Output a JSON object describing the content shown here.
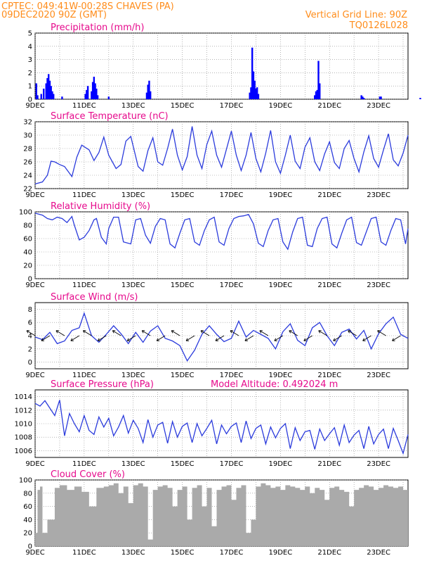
{
  "header": {
    "line1_left": "CPTEC:   049:41W-00:28S   CHAVES (PA)",
    "line2_left": "09DEC2020 90Z (GMT)",
    "line1_right": "Vertical Grid Line: 90Z",
    "line2_right": "TQ0126L028"
  },
  "x_labels": [
    "9DEC",
    "11DEC",
    "13DEC",
    "15DEC",
    "17DEC",
    "19DEC",
    "21DEC",
    "23DEC"
  ],
  "chart_data": [
    {
      "id": "precip",
      "type": "bar",
      "title": "Precipitation (mm/h)",
      "ylim": [
        0,
        5
      ],
      "yticks": [
        0,
        1,
        2,
        3,
        4,
        5
      ],
      "color": "#0000ff",
      "x_days": [
        0.05,
        0.1,
        0.25,
        0.35,
        0.45,
        0.5,
        0.55,
        0.6,
        0.65,
        0.7,
        0.75,
        1.1,
        2.05,
        2.1,
        2.15,
        2.3,
        2.35,
        2.4,
        2.45,
        2.5,
        2.55,
        3.0,
        4.55,
        4.6,
        4.65,
        4.7,
        8.75,
        8.8,
        8.85,
        8.9,
        8.95,
        9.0,
        9.05,
        9.1,
        11.4,
        11.45,
        11.5,
        11.55,
        11.6,
        13.3,
        13.35,
        13.4,
        14.05,
        14.1,
        15.7,
        16.3,
        17.05,
        17.1
      ],
      "values": [
        1.2,
        0.3,
        0.4,
        0.8,
        1.2,
        1.6,
        1.9,
        1.4,
        1.0,
        0.6,
        0.4,
        0.2,
        0.4,
        0.7,
        1.0,
        0.6,
        1.3,
        1.7,
        1.2,
        0.8,
        0.3,
        0.2,
        0.5,
        1.1,
        1.4,
        0.6,
        0.5,
        0.9,
        3.9,
        2.1,
        1.4,
        0.8,
        0.9,
        0.4,
        0.3,
        0.6,
        0.7,
        2.9,
        1.2,
        0.3,
        0.2,
        0.1,
        0.2,
        0.2,
        0.1,
        0.1,
        0.3,
        0.1
      ]
    },
    {
      "id": "temp",
      "type": "line",
      "title": "Surface Temperature (nC)",
      "ylim": [
        22,
        32
      ],
      "yticks": [
        22,
        24,
        26,
        28,
        30,
        32
      ],
      "color": "#2b3bdc",
      "x": [
        0,
        0.3,
        0.5,
        0.65,
        0.8,
        1.0,
        1.2,
        1.5,
        1.7,
        1.9,
        2.2,
        2.4,
        2.6,
        2.8,
        3.0,
        3.3,
        3.5,
        3.7,
        3.9,
        4.2,
        4.4,
        4.6,
        4.8,
        5.0,
        5.2,
        5.4,
        5.6,
        5.8,
        6.0,
        6.2,
        6.4,
        6.6,
        6.8,
        7.0,
        7.2,
        7.4,
        7.6,
        7.8,
        8.0,
        8.2,
        8.4,
        8.6,
        8.8,
        9.0,
        9.2,
        9.4,
        9.6,
        9.8,
        10.0,
        10.2,
        10.4,
        10.6,
        10.8,
        11.0,
        11.2,
        11.4,
        11.6,
        11.8,
        12.0,
        12.2,
        12.4,
        12.6,
        12.8,
        13.0,
        13.2,
        13.4,
        13.6,
        13.8,
        14.0,
        14.2,
        14.4,
        14.6,
        14.8,
        15.0,
        15.2
      ],
      "values": [
        22.7,
        23.0,
        24.0,
        26.1,
        26.0,
        25.6,
        25.3,
        23.8,
        26.7,
        28.5,
        27.8,
        26.2,
        27.4,
        29.7,
        27.0,
        25.0,
        25.6,
        29.1,
        29.8,
        25.3,
        24.6,
        27.7,
        29.6,
        26.0,
        25.5,
        28.0,
        30.9,
        27.0,
        24.8,
        26.8,
        31.3,
        27.0,
        25.0,
        28.6,
        30.6,
        27.0,
        25.2,
        27.9,
        30.6,
        27.0,
        24.7,
        27.0,
        30.4,
        26.5,
        24.5,
        27.3,
        30.7,
        26.0,
        24.3,
        27.0,
        30.0,
        26.1,
        25.0,
        28.2,
        29.6,
        26.0,
        24.7,
        27.2,
        29.0,
        25.9,
        25.0,
        28.0,
        29.2,
        26.5,
        24.5,
        27.5,
        29.9,
        26.5,
        25.2,
        27.8,
        30.2,
        26.3,
        25.4,
        27.3,
        30.0
      ]
    },
    {
      "id": "rh",
      "type": "line",
      "title": "Relative Humidity (%)",
      "ylim": [
        0,
        100
      ],
      "yticks": [
        0,
        20,
        40,
        60,
        80,
        100
      ],
      "color": "#2b3bdc",
      "x": [
        0,
        0.3,
        0.5,
        0.7,
        0.9,
        1.1,
        1.3,
        1.5,
        1.6,
        1.8,
        2.0,
        2.2,
        2.4,
        2.5,
        2.7,
        2.9,
        3.0,
        3.2,
        3.4,
        3.6,
        3.9,
        4.1,
        4.3,
        4.5,
        4.7,
        4.9,
        5.1,
        5.3,
        5.5,
        5.7,
        5.9,
        6.1,
        6.3,
        6.5,
        6.7,
        6.9,
        7.1,
        7.3,
        7.5,
        7.7,
        7.9,
        8.1,
        8.3,
        8.5,
        8.7,
        8.9,
        9.1,
        9.3,
        9.5,
        9.7,
        9.9,
        10.1,
        10.3,
        10.5,
        10.7,
        10.9,
        11.1,
        11.3,
        11.5,
        11.7,
        11.9,
        12.1,
        12.3,
        12.5,
        12.7,
        12.9,
        13.1,
        13.3,
        13.5,
        13.7,
        13.9,
        14.1,
        14.3,
        14.5,
        14.7,
        14.9,
        15.1,
        15.2
      ],
      "values": [
        98,
        95,
        90,
        88,
        92,
        90,
        84,
        93,
        80,
        58,
        62,
        72,
        88,
        90,
        62,
        52,
        75,
        92,
        92,
        55,
        52,
        88,
        90,
        65,
        53,
        78,
        90,
        88,
        52,
        46,
        68,
        88,
        90,
        55,
        50,
        72,
        88,
        92,
        55,
        50,
        75,
        90,
        93,
        94,
        96,
        82,
        53,
        48,
        72,
        88,
        90,
        55,
        44,
        70,
        90,
        92,
        50,
        48,
        75,
        90,
        92,
        52,
        46,
        68,
        88,
        92,
        54,
        50,
        70,
        90,
        92,
        55,
        50,
        72,
        90,
        88,
        52,
        75
      ]
    },
    {
      "id": "wind",
      "type": "line",
      "title": "Surface Wind (m/s)",
      "ylim": [
        -1,
        9
      ],
      "yticks": [
        0,
        2,
        4,
        6,
        8
      ],
      "color": "#2b3bdc",
      "x": [
        0,
        0.3,
        0.6,
        0.9,
        1.2,
        1.5,
        1.8,
        2.0,
        2.3,
        2.6,
        2.9,
        3.2,
        3.5,
        3.8,
        4.1,
        4.4,
        4.7,
        5.0,
        5.3,
        5.6,
        5.9,
        6.2,
        6.5,
        6.8,
        7.1,
        7.4,
        7.7,
        8.0,
        8.3,
        8.6,
        8.9,
        9.2,
        9.5,
        9.8,
        10.1,
        10.4,
        10.7,
        11.0,
        11.3,
        11.6,
        11.9,
        12.2,
        12.5,
        12.8,
        13.1,
        13.4,
        13.7,
        14.0,
        14.3,
        14.6,
        14.9,
        15.2
      ],
      "values": [
        3.8,
        3.4,
        4.5,
        2.8,
        3.2,
        4.8,
        5.2,
        7.4,
        4.0,
        3.0,
        4.2,
        5.5,
        4.3,
        2.8,
        4.5,
        3.0,
        4.7,
        5.5,
        3.6,
        3.2,
        2.5,
        0.2,
        1.8,
        4.2,
        5.5,
        4.2,
        3.1,
        3.6,
        6.2,
        3.8,
        4.8,
        4.2,
        3.6,
        2.0,
        4.6,
        5.8,
        3.3,
        2.5,
        5.2,
        6.0,
        4.0,
        2.5,
        4.5,
        5.0,
        3.5,
        4.8,
        2.0,
        4.3,
        5.8,
        6.8,
        4.2,
        3.6
      ]
    },
    {
      "id": "pres",
      "type": "line",
      "title": "Surface Pressure (hPa)",
      "subtitle": "Model Altitude: 0.492024 m",
      "ylim": [
        1005,
        1015
      ],
      "yticks": [
        1006,
        1008,
        1010,
        1012,
        1014
      ],
      "color": "#2b3bdc",
      "x": [
        0,
        0.2,
        0.4,
        0.6,
        0.8,
        1.0,
        1.2,
        1.4,
        1.6,
        1.8,
        2.0,
        2.2,
        2.4,
        2.6,
        2.8,
        3.0,
        3.2,
        3.4,
        3.6,
        3.8,
        4.0,
        4.2,
        4.4,
        4.6,
        4.8,
        5.0,
        5.2,
        5.4,
        5.6,
        5.8,
        6.0,
        6.2,
        6.4,
        6.6,
        6.8,
        7.0,
        7.2,
        7.4,
        7.6,
        7.8,
        8.0,
        8.2,
        8.4,
        8.6,
        8.8,
        9.0,
        9.2,
        9.4,
        9.6,
        9.8,
        10.0,
        10.2,
        10.4,
        10.6,
        10.8,
        11.0,
        11.2,
        11.4,
        11.6,
        11.8,
        12.0,
        12.2,
        12.4,
        12.6,
        12.8,
        13.0,
        13.2,
        13.4,
        13.6,
        13.8,
        14.0,
        14.2,
        14.4,
        14.6,
        14.8,
        15.0,
        15.2
      ],
      "values": [
        1013.0,
        1012.6,
        1013.4,
        1012.3,
        1011.2,
        1013.5,
        1008.2,
        1011.5,
        1010.0,
        1008.8,
        1011.2,
        1009.0,
        1008.4,
        1011.0,
        1009.5,
        1010.8,
        1008.2,
        1009.5,
        1011.2,
        1008.6,
        1010.5,
        1009.3,
        1007.2,
        1010.6,
        1008.0,
        1009.8,
        1010.2,
        1007.1,
        1010.3,
        1008.0,
        1009.6,
        1010.1,
        1007.2,
        1010.0,
        1008.2,
        1009.3,
        1010.5,
        1007.0,
        1009.8,
        1008.5,
        1009.6,
        1010.1,
        1007.2,
        1010.4,
        1007.8,
        1009.3,
        1009.8,
        1007.0,
        1009.5,
        1007.9,
        1009.3,
        1010.0,
        1006.3,
        1009.4,
        1007.5,
        1008.8,
        1009.0,
        1006.2,
        1009.2,
        1007.5,
        1008.5,
        1009.4,
        1006.8,
        1009.8,
        1007.2,
        1008.3,
        1009.0,
        1006.3,
        1009.6,
        1007.0,
        1008.4,
        1009.2,
        1006.3,
        1009.3,
        1007.5,
        1005.6,
        1008.4
      ]
    },
    {
      "id": "cloud",
      "type": "bar",
      "title": "Cloud Cover (%)",
      "ylim": [
        0,
        100
      ],
      "yticks": [
        0,
        20,
        40,
        60,
        80,
        100
      ],
      "color": "#aaaaaa",
      "x": [
        0,
        0.1,
        0.2,
        0.3,
        0.5,
        0.8,
        1.0,
        1.3,
        1.6,
        1.9,
        2.2,
        2.5,
        2.8,
        3.0,
        3.2,
        3.4,
        3.6,
        3.8,
        4.0,
        4.2,
        4.4,
        4.6,
        4.8,
        5.0,
        5.2,
        5.4,
        5.6,
        5.8,
        6.0,
        6.2,
        6.4,
        6.6,
        6.8,
        7.0,
        7.2,
        7.4,
        7.6,
        7.8,
        8.0,
        8.2,
        8.4,
        8.6,
        8.8,
        9.0,
        9.2,
        9.4,
        9.6,
        9.8,
        10.0,
        10.2,
        10.4,
        10.6,
        10.8,
        11.0,
        11.2,
        11.4,
        11.6,
        11.8,
        12.0,
        12.2,
        12.4,
        12.6,
        12.8,
        13.0,
        13.2,
        13.4,
        13.6,
        13.8,
        14.0,
        14.2,
        14.4,
        14.6,
        14.8,
        15.0,
        15.2
      ],
      "values": [
        20,
        85,
        90,
        20,
        40,
        88,
        92,
        85,
        90,
        82,
        60,
        88,
        90,
        92,
        95,
        80,
        90,
        65,
        92,
        95,
        90,
        10,
        85,
        90,
        92,
        88,
        60,
        85,
        90,
        40,
        88,
        92,
        60,
        88,
        30,
        85,
        90,
        92,
        70,
        88,
        92,
        20,
        40,
        90,
        95,
        92,
        88,
        90,
        85,
        92,
        90,
        88,
        85,
        90,
        80,
        88,
        85,
        70,
        88,
        90,
        85,
        82,
        60,
        85,
        88,
        92,
        90,
        85,
        88,
        92,
        90,
        88,
        90,
        85,
        88
      ]
    }
  ]
}
